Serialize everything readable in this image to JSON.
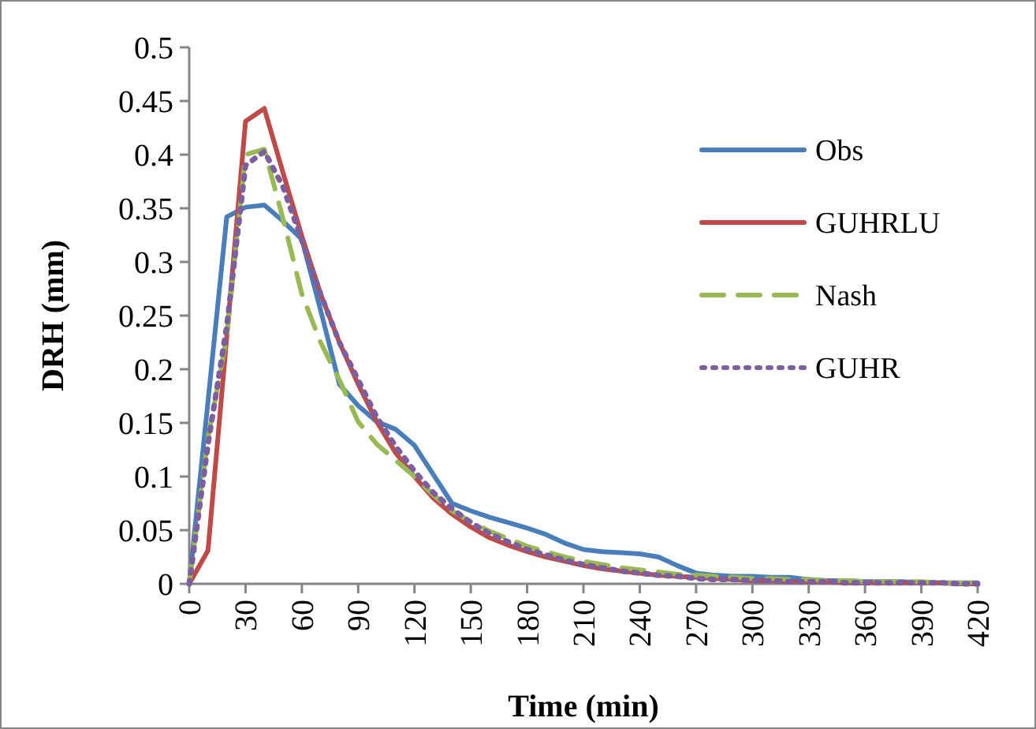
{
  "chart_data": {
    "type": "line",
    "xlabel": "Time (min)",
    "ylabel": "DRH (mm)",
    "x": [
      0,
      10,
      20,
      30,
      40,
      50,
      60,
      70,
      80,
      90,
      100,
      110,
      120,
      130,
      140,
      150,
      160,
      170,
      180,
      190,
      200,
      210,
      220,
      230,
      240,
      250,
      260,
      270,
      280,
      290,
      300,
      310,
      320,
      330,
      340,
      350,
      360,
      370,
      380,
      390,
      400,
      410,
      420
    ],
    "xlim": [
      0,
      420
    ],
    "xticks": [
      0,
      30,
      60,
      90,
      120,
      150,
      180,
      210,
      240,
      270,
      300,
      330,
      360,
      390,
      420
    ],
    "ylim": [
      0,
      0.5
    ],
    "yticks": [
      0,
      0.05,
      0.1,
      0.15,
      0.2,
      0.25,
      0.3,
      0.35,
      0.4,
      0.45,
      0.5
    ],
    "grid": false,
    "legend": "right",
    "marker": "none",
    "series": [
      {
        "name": "Obs",
        "color": "#4a7ebb",
        "line_style": "solid",
        "values": [
          0,
          0.17,
          0.342,
          0.351,
          0.353,
          0.338,
          0.321,
          0.255,
          0.186,
          0.166,
          0.151,
          0.144,
          0.129,
          0.102,
          0.075,
          0.068,
          0.062,
          0.057,
          0.052,
          0.046,
          0.038,
          0.032,
          0.03,
          0.029,
          0.028,
          0.025,
          0.017,
          0.01,
          0.008,
          0.007,
          0.007,
          0.006,
          0.006,
          0.004,
          0.003,
          0.003,
          0.002,
          0.002,
          0.002,
          0.001,
          0.001,
          0.001,
          0.001
        ]
      },
      {
        "name": "GUHRLU",
        "color": "#be4b48",
        "line_style": "solid",
        "values": [
          0,
          0.031,
          0.23,
          0.431,
          0.443,
          0.383,
          0.324,
          0.27,
          0.225,
          0.186,
          0.151,
          0.122,
          0.1,
          0.08,
          0.065,
          0.053,
          0.043,
          0.036,
          0.03,
          0.025,
          0.021,
          0.017,
          0.014,
          0.012,
          0.01,
          0.008,
          0.007,
          0.006,
          0.005,
          0.004,
          0.003,
          0.003,
          0.002,
          0.002,
          0.002,
          0.001,
          0.001,
          0.001,
          0.001,
          0.001,
          0.001,
          0,
          0
        ]
      },
      {
        "name": "Nash",
        "color": "#98b954",
        "line_style": "dashed",
        "values": [
          0,
          0.136,
          0.23,
          0.4,
          0.405,
          0.34,
          0.27,
          0.225,
          0.19,
          0.151,
          0.13,
          0.115,
          0.1,
          0.083,
          0.068,
          0.058,
          0.049,
          0.042,
          0.035,
          0.03,
          0.025,
          0.021,
          0.018,
          0.015,
          0.013,
          0.011,
          0.009,
          0.008,
          0.007,
          0.006,
          0.005,
          0.005,
          0.004,
          0.004,
          0.003,
          0.003,
          0.002,
          0.002,
          0.002,
          0.002,
          0.001,
          0.001,
          0.001
        ]
      },
      {
        "name": "GUHR",
        "color": "#7d5fa0",
        "line_style": "dotted",
        "values": [
          0,
          0.13,
          0.24,
          0.39,
          0.403,
          0.37,
          0.32,
          0.27,
          0.225,
          0.19,
          0.155,
          0.128,
          0.105,
          0.085,
          0.07,
          0.057,
          0.047,
          0.039,
          0.032,
          0.027,
          0.022,
          0.018,
          0.015,
          0.012,
          0.01,
          0.008,
          0.007,
          0.005,
          0.004,
          0.004,
          0.003,
          0.003,
          0.002,
          0.002,
          0.002,
          0.001,
          0.001,
          0.001,
          0.001,
          0.001,
          0.001,
          0,
          0
        ]
      }
    ]
  }
}
